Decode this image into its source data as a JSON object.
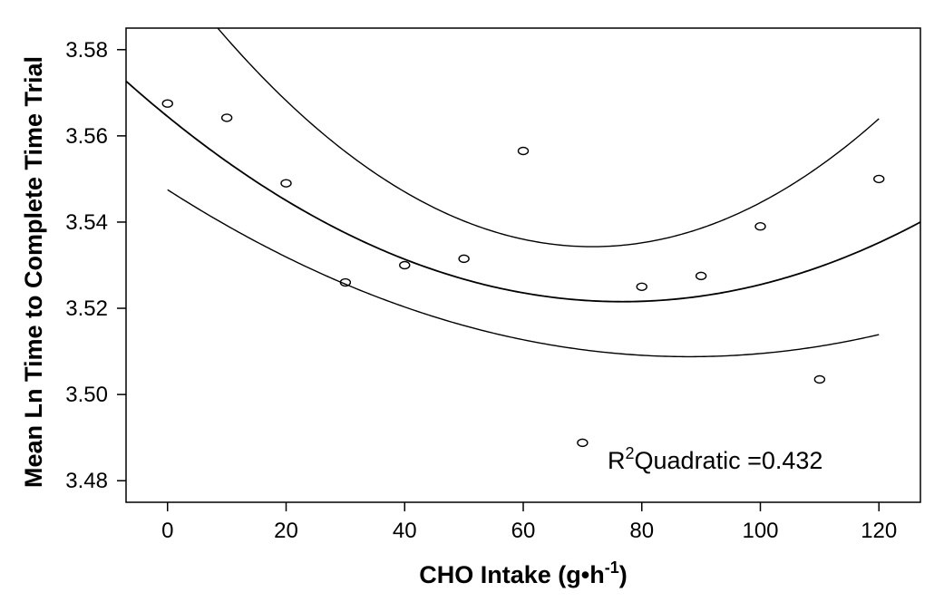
{
  "chart_data": {
    "type": "scatter",
    "xlabel": "CHO Intake (g•h",
    "xlabel_sup": "-1",
    "xlabel_end": ")",
    "ylabel": "Mean Ln Time to Complete Time Trial",
    "xlim": [
      -7,
      127
    ],
    "ylim": [
      3.475,
      3.585
    ],
    "x_ticks": [
      0,
      20,
      40,
      60,
      80,
      100,
      120
    ],
    "y_ticks": [
      3.48,
      3.5,
      3.52,
      3.54,
      3.56,
      3.58
    ],
    "y_tick_labels": [
      "3.48",
      "3.50",
      "3.52",
      "3.54",
      "3.56",
      "3.58"
    ],
    "grid": false,
    "points": [
      {
        "x": 0,
        "y": 3.5675
      },
      {
        "x": 10,
        "y": 3.5642
      },
      {
        "x": 20,
        "y": 3.549
      },
      {
        "x": 30,
        "y": 3.526
      },
      {
        "x": 40,
        "y": 3.53
      },
      {
        "x": 50,
        "y": 3.5315
      },
      {
        "x": 60,
        "y": 3.5565
      },
      {
        "x": 70,
        "y": 3.4888
      },
      {
        "x": 80,
        "y": 3.525
      },
      {
        "x": 90,
        "y": 3.5275
      },
      {
        "x": 100,
        "y": 3.539
      },
      {
        "x": 110,
        "y": 3.5035
      },
      {
        "x": 120,
        "y": 3.55
      }
    ],
    "fit": {
      "intercept": 3.5645,
      "b1": -0.00112,
      "b2": 7.3e-06,
      "x_range": [
        -7,
        127
      ]
    },
    "upper_band": {
      "intercept": 3.5995,
      "b1": -0.00182,
      "b2": 1.27e-05,
      "x_range": [
        4,
        120
      ]
    },
    "lower_band": {
      "intercept": 3.5475,
      "b1": -0.00088,
      "b2": 5e-06,
      "x_range": [
        0,
        120
      ]
    },
    "annotation": {
      "prefix": "R",
      "sup": "2",
      "text": "Quadratic =0.432"
    }
  }
}
